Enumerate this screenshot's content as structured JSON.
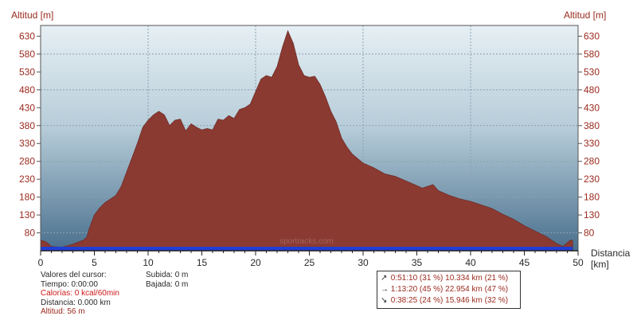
{
  "chart_data": {
    "type": "area",
    "ylabel_left": "Altitud [m]",
    "ylabel_right": "Altitud [m]",
    "xlabel": "Distancia",
    "xunit": "[km]",
    "xlim": [
      0,
      50
    ],
    "ylim": [
      30,
      660
    ],
    "x_ticks": [
      0,
      5,
      10,
      15,
      20,
      25,
      30,
      35,
      40,
      45,
      50
    ],
    "y_ticks": [
      80,
      130,
      180,
      230,
      280,
      330,
      380,
      430,
      480,
      530,
      580,
      630
    ],
    "grid": true,
    "series": [
      {
        "fill": "#8b3a32",
        "baseline_color": "#1f3fd6",
        "points": [
          [
            0,
            60
          ],
          [
            0.5,
            55
          ],
          [
            1,
            42
          ],
          [
            2,
            40
          ],
          [
            3,
            48
          ],
          [
            4,
            60
          ],
          [
            4.3,
            68
          ],
          [
            4.5,
            90
          ],
          [
            5,
            130
          ],
          [
            5.5,
            150
          ],
          [
            6,
            165
          ],
          [
            6.5,
            175
          ],
          [
            7,
            185
          ],
          [
            7.5,
            210
          ],
          [
            8,
            250
          ],
          [
            8.5,
            290
          ],
          [
            9,
            330
          ],
          [
            9.5,
            375
          ],
          [
            10,
            395
          ],
          [
            10.5,
            410
          ],
          [
            11,
            420
          ],
          [
            11.5,
            410
          ],
          [
            12,
            380
          ],
          [
            12.5,
            395
          ],
          [
            13,
            398
          ],
          [
            13.5,
            365
          ],
          [
            14,
            385
          ],
          [
            14.5,
            375
          ],
          [
            15,
            368
          ],
          [
            15.5,
            372
          ],
          [
            16,
            368
          ],
          [
            16.5,
            398
          ],
          [
            17,
            395
          ],
          [
            17.5,
            408
          ],
          [
            18,
            400
          ],
          [
            18.5,
            425
          ],
          [
            19,
            430
          ],
          [
            19.5,
            440
          ],
          [
            20,
            475
          ],
          [
            20.5,
            510
          ],
          [
            21,
            520
          ],
          [
            21.5,
            515
          ],
          [
            22,
            545
          ],
          [
            22.5,
            600
          ],
          [
            23,
            645
          ],
          [
            23.5,
            610
          ],
          [
            24,
            550
          ],
          [
            24.5,
            520
          ],
          [
            25,
            515
          ],
          [
            25.5,
            518
          ],
          [
            26,
            495
          ],
          [
            26.5,
            460
          ],
          [
            27,
            420
          ],
          [
            27.5,
            390
          ],
          [
            28,
            345
          ],
          [
            28.5,
            320
          ],
          [
            29,
            300
          ],
          [
            30,
            275
          ],
          [
            31,
            262
          ],
          [
            32,
            245
          ],
          [
            33,
            238
          ],
          [
            34,
            225
          ],
          [
            35,
            212
          ],
          [
            35.5,
            205
          ],
          [
            36,
            210
          ],
          [
            36.5,
            215
          ],
          [
            37,
            198
          ],
          [
            38,
            185
          ],
          [
            39,
            175
          ],
          [
            40,
            168
          ],
          [
            41,
            158
          ],
          [
            42,
            148
          ],
          [
            43,
            132
          ],
          [
            44,
            118
          ],
          [
            45,
            100
          ],
          [
            46,
            85
          ],
          [
            47,
            70
          ],
          [
            48,
            50
          ],
          [
            48.6,
            42
          ],
          [
            49.3,
            60
          ],
          [
            49.5,
            58
          ]
        ]
      }
    ],
    "watermark": "sportracks.com"
  },
  "info": {
    "title": "Valores del cursor:",
    "tiempo": "Tiempo: 0:00:00",
    "calorias": "Calorías: 0 kcal/60min",
    "distancia": "Distancia: 0.000 km",
    "altitud": "Altitud: 56 m",
    "subida": "Subida: 0 m",
    "bajada": "Bajada: 0 m"
  },
  "stats": [
    {
      "arrow": "↗",
      "text": "0:51:10  (31 %)  10.334 km  (21 %)"
    },
    {
      "arrow": "→",
      "text": "1:13:20  (45 %)  22.954 km  (47 %)"
    },
    {
      "arrow": "↘",
      "text": "0:38:25  (24 %)  15.946 km  (32 %)"
    }
  ],
  "colors": {
    "bg_top": "#e4eef3",
    "bg_bottom": "#4d7391",
    "fill": "#8b3a32",
    "axis_text": "#9a2a1e"
  }
}
